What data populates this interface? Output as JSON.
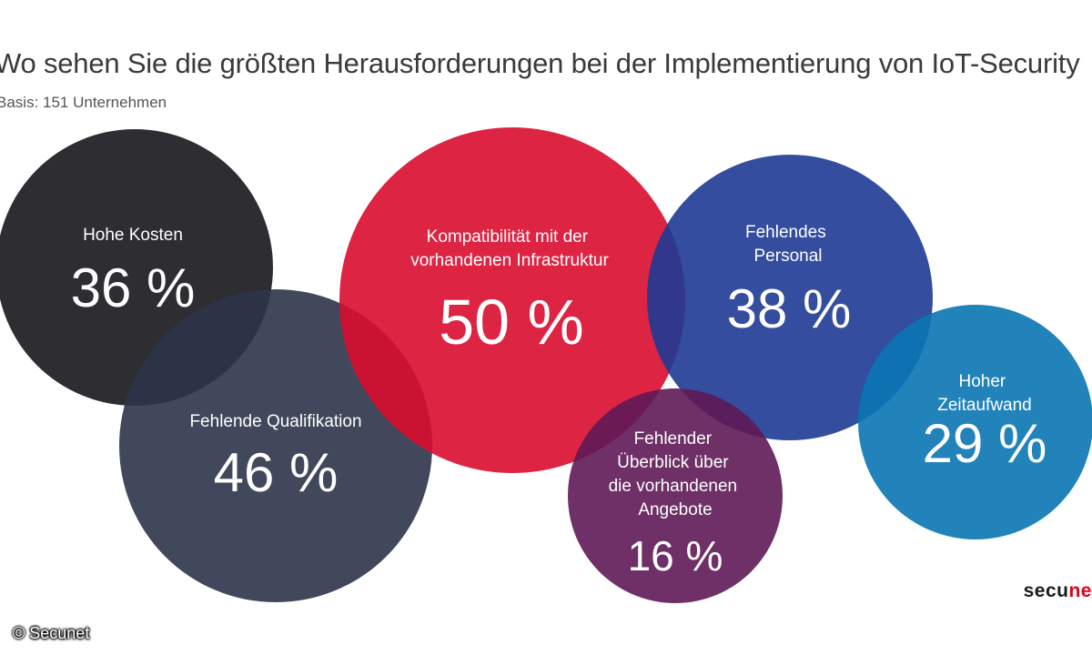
{
  "header": {
    "title": "Wo sehen Sie die größten Herausforderungen bei der Implementierung von IoT-Security",
    "subtitle": "Basis: 151 Unternehmen"
  },
  "chart_data": {
    "type": "bubble",
    "unit": "%",
    "bubbles": [
      {
        "label": "Hohe Kosten",
        "value": 36,
        "display": "36 %",
        "color": "#16161c"
      },
      {
        "label": "Fehlende Qualifikation",
        "value": 46,
        "display": "46 %",
        "color": "#2c3449"
      },
      {
        "label": "Kompatibilität mit der vorhandenen Infrastruktur",
        "value": 50,
        "display": "50 %",
        "color": "#d90c2f"
      },
      {
        "label": "Fehlendes Personal",
        "value": 38,
        "display": "38 %",
        "color": "#1e3a94"
      },
      {
        "label": "Fehlender Überblick über die vorhandenen Angebote",
        "value": 16,
        "display": "16 %",
        "color": "#5e1a55"
      },
      {
        "label": "Hoher Zeitaufwand",
        "value": 29,
        "display": "29 %",
        "color": "#0a76b4"
      }
    ]
  },
  "logo": {
    "text_dark": "secu",
    "text_red": "ne"
  },
  "copyright": "© Secunet"
}
